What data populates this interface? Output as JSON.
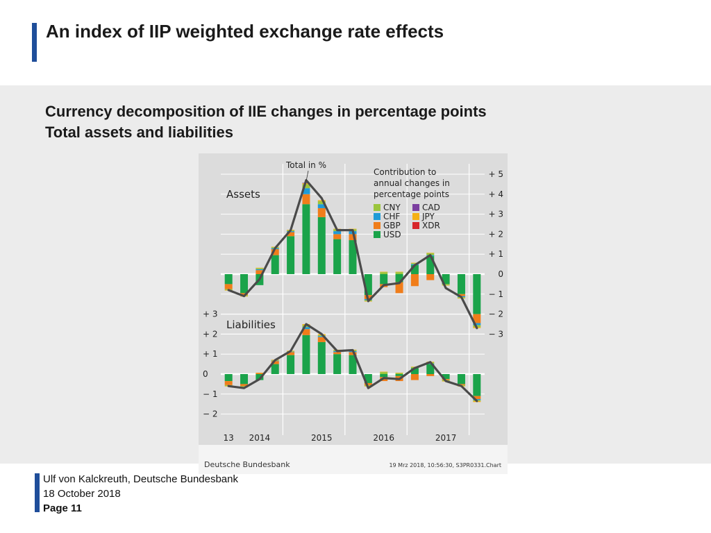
{
  "slide": {
    "title": "An index of IIP weighted exchange rate effects",
    "subtitle_line1": "Currency decomposition of IIE changes in percentage points",
    "subtitle_line2": "Total assets and liabilities"
  },
  "footer": {
    "author": "Ulf von Kalckreuth, Deutsche Bundesbank",
    "date": "18 October 2018",
    "page": "Page 11"
  },
  "chart_data": [
    {
      "type": "bar",
      "panel": "Assets",
      "title": "Assets",
      "stacked": true,
      "total_label": "Total in %",
      "legend_title": [
        "Contribution to",
        "annual changes in",
        "percentage points"
      ],
      "legend_placement": "top-right",
      "ylim": [
        -3,
        5
      ],
      "y_ticks": [
        5,
        4,
        3,
        2,
        1,
        0,
        -1,
        -2,
        -3
      ],
      "y_tick_labels": [
        "+ 5",
        "+ 4",
        "+ 3",
        "+ 2",
        "+ 1",
        "0",
        "− 1",
        "− 2",
        "− 3"
      ],
      "x_labels": [
        "13",
        "2014",
        "2015",
        "2016",
        "2017"
      ],
      "categories": [
        "2013Q4",
        "2014Q1",
        "2014Q2",
        "2014Q3",
        "2014Q4",
        "2015Q1",
        "2015Q2",
        "2015Q3",
        "2015Q4",
        "2016Q1",
        "2016Q2",
        "2016Q3",
        "2016Q4",
        "2017Q1",
        "2017Q2",
        "2017Q3",
        "2017Q4"
      ],
      "series": [
        {
          "name": "USD",
          "color": "#1aa34a",
          "values": [
            -0.5,
            -0.95,
            -0.55,
            0.95,
            1.9,
            3.5,
            2.85,
            1.75,
            1.7,
            -1.05,
            -0.5,
            -0.4,
            0.45,
            0.9,
            -0.5,
            -1.0,
            -2.0
          ]
        },
        {
          "name": "GBP",
          "color": "#f07d1a",
          "values": [
            -0.25,
            -0.1,
            0.2,
            0.3,
            0.2,
            0.5,
            0.45,
            0.25,
            0.3,
            -0.2,
            -0.15,
            -0.55,
            -0.6,
            -0.3,
            0.0,
            -0.1,
            -0.45
          ]
        },
        {
          "name": "CHF",
          "color": "#1e9bd7",
          "values": [
            0.0,
            0.0,
            0.05,
            0.05,
            0.05,
            0.3,
            0.2,
            0.15,
            0.15,
            -0.05,
            0.0,
            0.0,
            0.05,
            0.05,
            0.0,
            -0.05,
            -0.1
          ]
        },
        {
          "name": "CNY",
          "color": "#9bc53d",
          "values": [
            -0.05,
            -0.05,
            0.05,
            0.05,
            0.05,
            0.2,
            0.15,
            0.1,
            0.1,
            -0.05,
            0.1,
            0.1,
            0.05,
            0.1,
            -0.05,
            -0.05,
            -0.1
          ]
        },
        {
          "name": "JPY",
          "color": "#f5b015",
          "values": [
            -0.02,
            -0.02,
            0.02,
            0.02,
            0.02,
            0.05,
            0.05,
            0.02,
            0.02,
            -0.02,
            0.02,
            0.02,
            0.02,
            0.02,
            -0.02,
            -0.02,
            -0.05
          ]
        },
        {
          "name": "CAD",
          "color": "#7b3fa0",
          "values": [
            0.0,
            0.0,
            0.0,
            0.0,
            0.0,
            0.02,
            0.0,
            0.0,
            0.0,
            0.0,
            0.0,
            0.0,
            0.0,
            0.0,
            0.0,
            0.0,
            0.0
          ]
        },
        {
          "name": "XDR",
          "color": "#d7262b",
          "values": [
            0.0,
            0.0,
            0.0,
            0.0,
            0.0,
            0.0,
            0.0,
            0.0,
            0.0,
            0.0,
            0.0,
            0.0,
            0.0,
            0.0,
            0.0,
            0.0,
            0.0
          ]
        }
      ],
      "totals": [
        -0.8,
        -1.1,
        -0.25,
        1.3,
        2.2,
        4.7,
        3.8,
        2.2,
        2.2,
        -1.35,
        -0.55,
        -0.45,
        0.45,
        0.95,
        -0.7,
        -1.15,
        -2.7
      ]
    },
    {
      "type": "bar",
      "panel": "Liabilities",
      "title": "Liabilities",
      "stacked": true,
      "ylim": [
        -2,
        3
      ],
      "y_ticks": [
        3,
        2,
        1,
        0,
        -1,
        -2
      ],
      "y_tick_labels": [
        "+ 3",
        "+ 2",
        "+ 1",
        "0",
        "− 1",
        "− 2"
      ],
      "x_labels": [
        "13",
        "2014",
        "2015",
        "2016",
        "2017"
      ],
      "categories": [
        "2013Q4",
        "2014Q1",
        "2014Q2",
        "2014Q3",
        "2014Q4",
        "2015Q1",
        "2015Q2",
        "2015Q3",
        "2015Q4",
        "2016Q1",
        "2016Q2",
        "2016Q3",
        "2016Q4",
        "2017Q1",
        "2017Q2",
        "2017Q3",
        "2017Q4"
      ],
      "series": [
        {
          "name": "USD",
          "values": [
            -0.35,
            -0.5,
            -0.3,
            0.5,
            0.95,
            1.95,
            1.6,
            1.0,
            0.95,
            -0.45,
            -0.15,
            -0.1,
            0.3,
            0.5,
            -0.25,
            -0.5,
            -1.1
          ]
        },
        {
          "name": "GBP",
          "values": [
            -0.2,
            -0.1,
            0.05,
            0.15,
            0.15,
            0.3,
            0.25,
            0.1,
            0.15,
            -0.1,
            -0.2,
            -0.25,
            -0.3,
            -0.1,
            -0.05,
            -0.05,
            -0.15
          ]
        },
        {
          "name": "CHF",
          "values": [
            0.0,
            0.0,
            0.0,
            0.02,
            0.02,
            0.1,
            0.05,
            0.05,
            0.05,
            0.0,
            0.0,
            0.0,
            0.0,
            0.02,
            0.0,
            0.0,
            -0.05
          ]
        },
        {
          "name": "CNY",
          "values": [
            -0.05,
            -0.05,
            0.0,
            0.03,
            0.03,
            0.1,
            0.05,
            0.05,
            0.05,
            -0.05,
            0.1,
            0.05,
            0.05,
            0.08,
            -0.05,
            -0.05,
            -0.05
          ]
        },
        {
          "name": "JPY",
          "values": [
            -0.02,
            -0.02,
            0.02,
            0.02,
            0.02,
            0.05,
            0.05,
            0.02,
            0.02,
            -0.02,
            0.02,
            0.02,
            0.02,
            0.02,
            -0.02,
            -0.02,
            -0.05
          ]
        },
        {
          "name": "CAD",
          "values": [
            0.0,
            0.0,
            0.0,
            0.0,
            0.0,
            0.0,
            0.0,
            0.0,
            0.0,
            0.0,
            0.0,
            0.0,
            0.0,
            0.0,
            0.0,
            0.0,
            0.0
          ]
        },
        {
          "name": "XDR",
          "values": [
            0.0,
            0.0,
            0.0,
            0.0,
            0.0,
            0.0,
            0.0,
            0.0,
            0.0,
            0.0,
            0.0,
            0.0,
            0.0,
            0.0,
            0.0,
            0.0,
            0.0
          ]
        }
      ],
      "totals": [
        -0.6,
        -0.7,
        -0.25,
        0.7,
        1.15,
        2.5,
        2.0,
        1.15,
        1.2,
        -0.7,
        -0.2,
        -0.25,
        0.3,
        0.6,
        -0.35,
        -0.6,
        -1.35
      ]
    }
  ],
  "legend": {
    "items": [
      {
        "name": "CNY",
        "color": "#9bc53d"
      },
      {
        "name": "CAD",
        "color": "#7b3fa0"
      },
      {
        "name": "CHF",
        "color": "#1e9bd7"
      },
      {
        "name": "JPY",
        "color": "#f5b015"
      },
      {
        "name": "GBP",
        "color": "#f07d1a"
      },
      {
        "name": "XDR",
        "color": "#d7262b"
      },
      {
        "name": "USD",
        "color": "#1aa34a"
      }
    ]
  },
  "source": {
    "name": "Deutsche Bundesbank",
    "stamp": "19 Mrz 2018, 10:56:30, S3PR0331.Chart"
  },
  "colors": {
    "accent": "#1f4e9a",
    "total_line": "#4a4a4a",
    "chart_bg": "#dcdcdc"
  }
}
